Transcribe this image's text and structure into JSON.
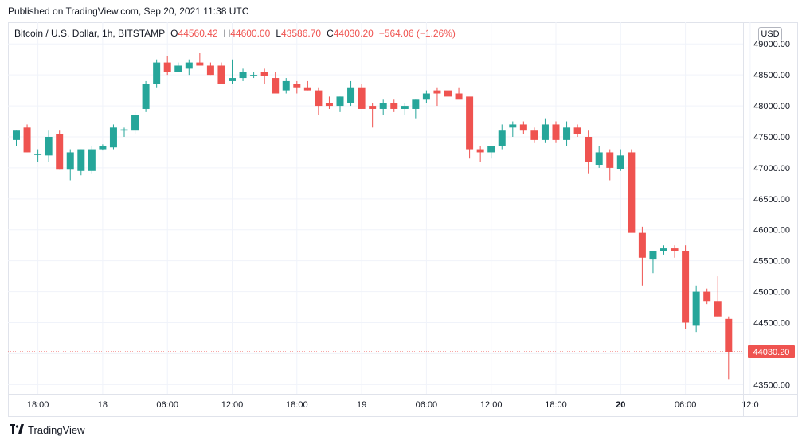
{
  "published": "Published on TradingView.com, Sep 20, 2021 11:38 UTC",
  "legend": {
    "symbol": "Bitcoin / U.S. Dollar, 1h, BITSTAMP",
    "open_label": "O",
    "open": "44560.42",
    "high_label": "H",
    "high": "44600.00",
    "low_label": "L",
    "low": "43586.70",
    "close_label": "C",
    "close": "44030.20",
    "change": "−564.06 (−1.26%)"
  },
  "currency_button": "USD",
  "footer": {
    "brand": "TradingView"
  },
  "colors": {
    "up": "#26a69a",
    "down": "#ef5350",
    "grid": "#f0f3fa",
    "text": "#131722"
  },
  "chart_data": {
    "type": "candlestick",
    "series_name": "Bitcoin / U.S. Dollar",
    "ylim": [
      43350,
      49350
    ],
    "y_ticks": [
      "49000.00",
      "48500.00",
      "48000.00",
      "47500.00",
      "47000.00",
      "46500.00",
      "46000.00",
      "45500.00",
      "45000.00",
      "44500.00",
      "44000.00",
      "43500.00"
    ],
    "x_ticks": [
      {
        "label": "18:00",
        "index": 2,
        "bold": false
      },
      {
        "label": "18",
        "index": 8,
        "bold": false
      },
      {
        "label": "06:00",
        "index": 14,
        "bold": false
      },
      {
        "label": "12:00",
        "index": 20,
        "bold": false
      },
      {
        "label": "18:00",
        "index": 26,
        "bold": false
      },
      {
        "label": "19",
        "index": 32,
        "bold": false
      },
      {
        "label": "06:00",
        "index": 38,
        "bold": false
      },
      {
        "label": "12:00",
        "index": 44,
        "bold": false
      },
      {
        "label": "18:00",
        "index": 50,
        "bold": false
      },
      {
        "label": "20",
        "index": 56,
        "bold": true
      },
      {
        "label": "06:00",
        "index": 62,
        "bold": false
      },
      {
        "label": "12:0",
        "index": 68,
        "bold": false
      }
    ],
    "last_price": "44030.20",
    "last_value": 44030.2,
    "candles": [
      [
        47450,
        47600,
        47350,
        47600
      ],
      [
        47650,
        47700,
        47250,
        47250
      ],
      [
        47220,
        47300,
        47100,
        47220
      ],
      [
        47200,
        47600,
        47100,
        47500
      ],
      [
        47550,
        47600,
        46970,
        46970
      ],
      [
        46970,
        47300,
        46800,
        47250
      ],
      [
        46950,
        47300,
        46880,
        47300
      ],
      [
        46950,
        47350,
        46900,
        47300
      ],
      [
        47300,
        47380,
        47280,
        47350
      ],
      [
        47330,
        47700,
        47300,
        47650
      ],
      [
        47600,
        47650,
        47500,
        47620
      ],
      [
        47600,
        47900,
        47550,
        47850
      ],
      [
        47950,
        48400,
        47900,
        48350
      ],
      [
        48350,
        48750,
        48300,
        48700
      ],
      [
        48700,
        48800,
        48500,
        48550
      ],
      [
        48550,
        48700,
        48550,
        48650
      ],
      [
        48600,
        48750,
        48500,
        48700
      ],
      [
        48700,
        48850,
        48650,
        48650
      ],
      [
        48650,
        48700,
        48500,
        48500
      ],
      [
        48650,
        48700,
        48350,
        48350
      ],
      [
        48400,
        48750,
        48350,
        48450
      ],
      [
        48450,
        48600,
        48400,
        48550
      ],
      [
        48500,
        48550,
        48450,
        48500
      ],
      [
        48550,
        48600,
        48350,
        48480
      ],
      [
        48450,
        48550,
        48250,
        48200
      ],
      [
        48250,
        48450,
        48200,
        48400
      ],
      [
        48350,
        48400,
        48200,
        48300
      ],
      [
        48300,
        48400,
        48250,
        48250
      ],
      [
        48250,
        48300,
        47850,
        48000
      ],
      [
        48050,
        48150,
        47950,
        48000
      ],
      [
        48000,
        48150,
        47900,
        48150
      ],
      [
        48050,
        48400,
        48000,
        48300
      ],
      [
        48300,
        48350,
        47950,
        47950
      ],
      [
        48000,
        48050,
        47650,
        47950
      ],
      [
        47950,
        48100,
        47850,
        48050
      ],
      [
        48050,
        48100,
        47900,
        47950
      ],
      [
        47950,
        48050,
        47850,
        48000
      ],
      [
        47950,
        48100,
        47800,
        48100
      ],
      [
        48100,
        48250,
        48050,
        48200
      ],
      [
        48250,
        48300,
        48000,
        48200
      ],
      [
        48250,
        48350,
        48050,
        48150
      ],
      [
        48200,
        48300,
        48150,
        48100
      ],
      [
        48150,
        48100,
        47150,
        47300
      ],
      [
        47300,
        47350,
        47100,
        47250
      ],
      [
        47250,
        47350,
        47150,
        47350
      ],
      [
        47350,
        47700,
        47300,
        47600
      ],
      [
        47650,
        47750,
        47500,
        47700
      ],
      [
        47700,
        47750,
        47550,
        47600
      ],
      [
        47600,
        47650,
        47400,
        47450
      ],
      [
        47450,
        47800,
        47400,
        47700
      ],
      [
        47700,
        47750,
        47400,
        47450
      ],
      [
        47450,
        47750,
        47350,
        47650
      ],
      [
        47650,
        47700,
        47500,
        47550
      ],
      [
        47500,
        47600,
        46900,
        47100
      ],
      [
        47050,
        47350,
        47000,
        47250
      ],
      [
        47250,
        47300,
        46800,
        47000
      ],
      [
        46980,
        47300,
        46950,
        47200
      ],
      [
        47250,
        47300,
        46000,
        45950
      ],
      [
        45950,
        46050,
        45100,
        45550
      ],
      [
        45520,
        45650,
        45300,
        45650
      ],
      [
        45650,
        45750,
        45600,
        45700
      ],
      [
        45700,
        45750,
        45550,
        45650
      ],
      [
        45650,
        45750,
        44400,
        44500
      ],
      [
        44450,
        45100,
        44350,
        45000
      ],
      [
        45000,
        45050,
        44800,
        44850
      ],
      [
        44850,
        45250,
        44600,
        44600
      ],
      [
        44560,
        44600,
        43590,
        44030
      ]
    ]
  }
}
